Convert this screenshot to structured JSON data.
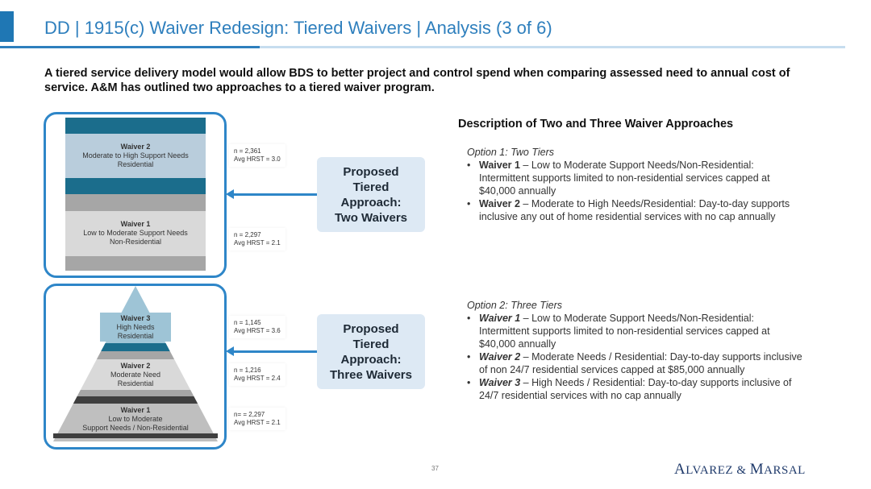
{
  "header": {
    "title": "DD | 1915(c) Waiver Redesign: Tiered Waivers | Analysis (3 of 6)"
  },
  "subtitle": "A tiered service delivery model would allow BDS to better project and control spend when comparing assessed need to annual cost of service. A&M has outlined two approaches to a tiered waiver program.",
  "colors": {
    "accent": "#2e7fbd",
    "frame": "#2e86c8",
    "dark_band": "#1b6d8c",
    "approach_box": "#dde9f4",
    "logo": "#1f3a6b"
  },
  "two_tier": {
    "waiver2": {
      "name": "Waiver 2",
      "line1": "Moderate to High Support Needs",
      "line2": "Residential"
    },
    "waiver1": {
      "name": "Waiver 1",
      "line1": "Low to Moderate Support Needs",
      "line2": "Non-Residential"
    },
    "stats": [
      {
        "n": "n = 2,361",
        "hrst": "Avg HRST = 3.0"
      },
      {
        "n": "n = 2,297",
        "hrst": "Avg HRST = 2.1"
      }
    ],
    "approach": [
      "Proposed",
      "Tiered",
      "Approach:",
      "Two Waivers"
    ]
  },
  "three_tier": {
    "waiver3": {
      "name": "Waiver 3",
      "line1": "High Needs",
      "line2": "Residential"
    },
    "waiver2": {
      "name": "Waiver 2",
      "line1": "Moderate Need",
      "line2": "Residential"
    },
    "waiver1": {
      "name": "Waiver 1",
      "line1": "Low to Moderate",
      "line2": "Support Needs / Non-Residential"
    },
    "stats": [
      {
        "n": "n = 1,145",
        "hrst": "Avg HRST = 3.6"
      },
      {
        "n": "n = 1,216",
        "hrst": "Avg HRST = 2.4"
      },
      {
        "n": "n= = 2,297",
        "hrst": "Avg HRST = 2.1"
      }
    ],
    "approach": [
      "Proposed",
      "Tiered",
      "Approach:",
      "Three Waivers"
    ]
  },
  "description": {
    "title": "Description of Two and Three Waiver Approaches",
    "option1": {
      "heading": "Option 1: Two Tiers",
      "items": [
        {
          "label": "Waiver 1",
          "text": " – Low to Moderate Support Needs/Non-Residential: Intermittent supports limited to non-residential services capped at $40,000 annually"
        },
        {
          "label": "Waiver 2",
          "text": " – Moderate to High Needs/Residential: Day-to-day supports inclusive any out of home residential services with no cap annually"
        }
      ]
    },
    "option2": {
      "heading": "Option 2: Three Tiers",
      "items": [
        {
          "label": "Waiver 1",
          "text": " – Low to Moderate Support Needs/Non-Residential: Intermittent supports limited to non-residential services capped at $40,000 annually"
        },
        {
          "label": "Waiver 2",
          "text": " – Moderate Needs / Residential: Day-to-day supports inclusive of non 24/7 residential services capped at $85,000 annually"
        },
        {
          "label": "Waiver 3",
          "text": " – High Needs / Residential: Day-to-day supports inclusive of 24/7 residential services with no cap annually"
        }
      ]
    }
  },
  "footer": {
    "page_number": "37",
    "logo": "Alvarez & Marsal"
  }
}
